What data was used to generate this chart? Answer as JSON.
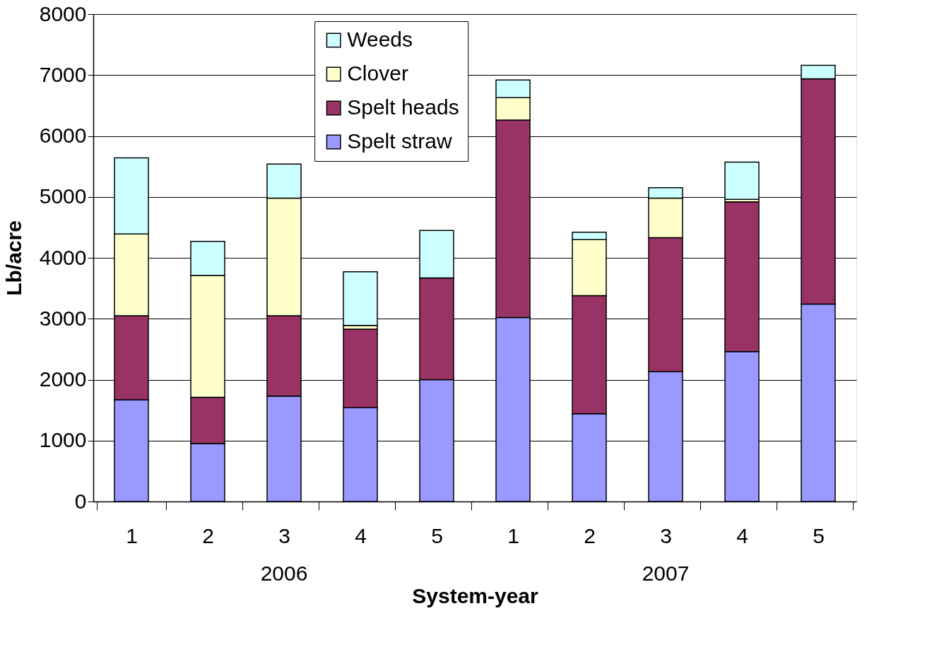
{
  "chart_data": {
    "type": "bar",
    "stacked": true,
    "xlabel": "System-year",
    "ylabel": "Lb/acre",
    "categories": [
      "1",
      "2",
      "3",
      "4",
      "5",
      "1",
      "2",
      "3",
      "4",
      "5"
    ],
    "series": [
      {
        "name": "Spelt straw",
        "color": "#9999ff",
        "values": [
          1670,
          950,
          1730,
          1540,
          2000,
          3020,
          1440,
          2130,
          2460,
          3240
        ]
      },
      {
        "name": "Spelt heads",
        "color": "#993366",
        "values": [
          1380,
          760,
          1320,
          1290,
          1670,
          3240,
          1940,
          2200,
          2460,
          3700
        ]
      },
      {
        "name": "Clover",
        "color": "#ffffcc",
        "values": [
          1340,
          2000,
          1930,
          60,
          0,
          370,
          920,
          650,
          40,
          0
        ]
      },
      {
        "name": "Weeds",
        "color": "#ccffff",
        "values": [
          1250,
          560,
          560,
          880,
          780,
          290,
          120,
          170,
          610,
          220
        ]
      }
    ],
    "ylim": [
      0,
      8000
    ],
    "yticks": [
      0,
      1000,
      2000,
      3000,
      4000,
      5000,
      6000,
      7000,
      8000
    ],
    "grid": "y",
    "legend": "top",
    "annotations": [
      "2006",
      "2007"
    ]
  }
}
